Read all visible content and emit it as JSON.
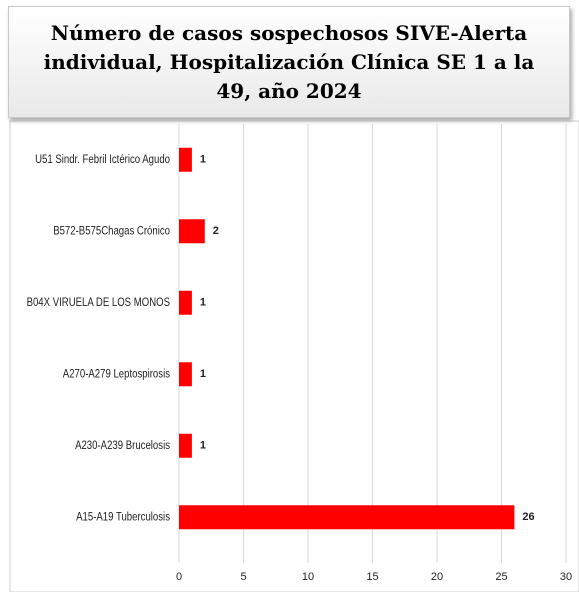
{
  "chart_data": {
    "type": "hbar",
    "title": "Número de casos sospechosos SIVE-Alerta individual, Hospitalización Clínica SE 1 a la 49, año 2024",
    "categories": [
      "U51 Sindr. Febril Ictérico Agudo",
      "B572-B575Chagas Crónico",
      "B04X VIRUELA DE LOS MONOS",
      "A270-A279 Leptospirosis",
      "A230-A239 Brucelosis",
      "A15-A19 Tuberculosis"
    ],
    "values": [
      1,
      2,
      1,
      1,
      1,
      26
    ],
    "color": "#ff0000",
    "xlim": [
      0,
      30
    ],
    "xticks": [
      0,
      5,
      10,
      15,
      20,
      25,
      30
    ],
    "grid": true
  }
}
